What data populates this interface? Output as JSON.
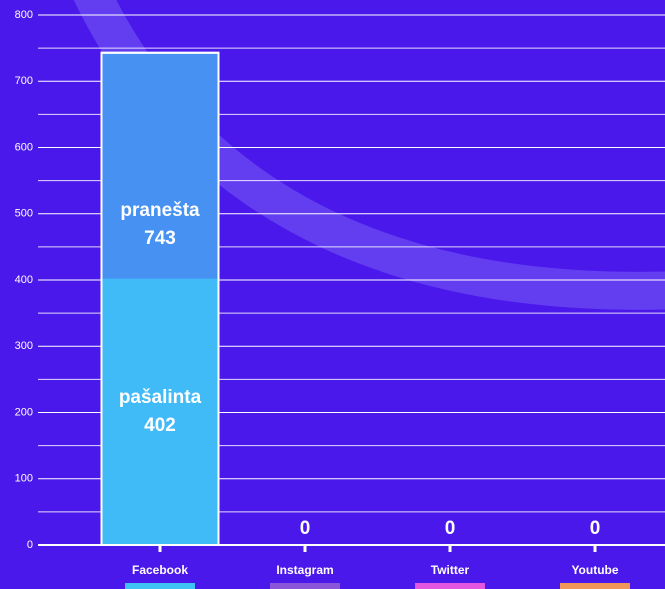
{
  "chart_data": {
    "type": "bar",
    "overlap": true,
    "categories": [
      "Facebook",
      "Instagram",
      "Twitter",
      "Youtube"
    ],
    "category_colors": [
      "#3fc3f5",
      "#8a55d8",
      "#e455e0",
      "#f0965a"
    ],
    "series": [
      {
        "name": "pranešta",
        "color": "#4691f2",
        "values": [
          743,
          0,
          0,
          0
        ]
      },
      {
        "name": "pašalinta",
        "color": "#40bbf8",
        "values": [
          402,
          0,
          0,
          0
        ]
      }
    ],
    "ylim": [
      0,
      800
    ],
    "yticks": [
      0,
      100,
      200,
      300,
      400,
      500,
      600,
      700,
      800
    ],
    "yminor": [
      50,
      150,
      250,
      350,
      450,
      550,
      650,
      750
    ],
    "grid": true
  }
}
